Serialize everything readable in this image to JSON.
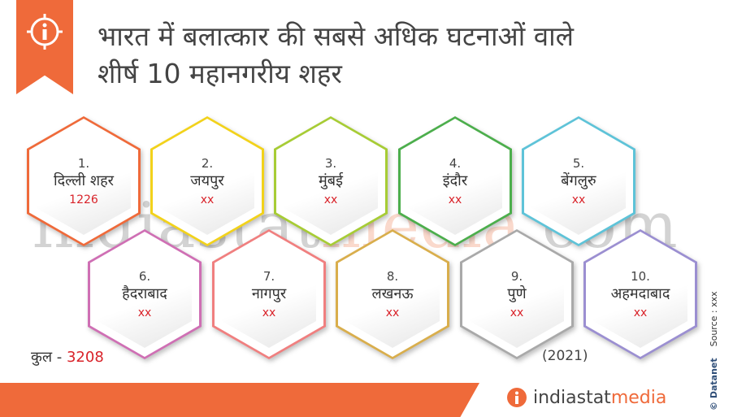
{
  "header": {
    "title_line1": "भारत में बलात्कार की सबसे अधिक घटनाओं वाले",
    "title_line2": "शीर्ष 10 महानगरीय शहर",
    "accent_color": "#ef6a3a"
  },
  "watermark": {
    "part1": "indiastat",
    "part2": "media",
    "part3": ".com"
  },
  "cities": [
    {
      "rank": "1.",
      "name": "दिल्ली शहर",
      "value": "1226",
      "color": "#ef6a3a"
    },
    {
      "rank": "2.",
      "name": "जयपुर",
      "value": "xx",
      "color": "#f2d21b"
    },
    {
      "rank": "3.",
      "name": "मुंबई",
      "value": "xx",
      "color": "#a7cc35"
    },
    {
      "rank": "4.",
      "name": "इंदौर",
      "value": "xx",
      "color": "#4cae4c"
    },
    {
      "rank": "5.",
      "name": "बेंगलुरु",
      "value": "xx",
      "color": "#5ec3d8"
    },
    {
      "rank": "6.",
      "name": "हैदराबाद",
      "value": "xx",
      "color": "#cf6fb4"
    },
    {
      "rank": "7.",
      "name": "नागपुर",
      "value": "xx",
      "color": "#f07f7f"
    },
    {
      "rank": "8.",
      "name": "लखनऊ",
      "value": "xx",
      "color": "#d9ae4c"
    },
    {
      "rank": "9.",
      "name": "पुणे",
      "value": "xx",
      "color": "#a9a9a9"
    },
    {
      "rank": "10.",
      "name": "अहमदाबाद",
      "value": "xx",
      "color": "#9b8fd1"
    }
  ],
  "total": {
    "label": "कुल - ",
    "value": "3208"
  },
  "year": "(2021)",
  "source": {
    "brand": "© Datanet",
    "text": "Source : xxx"
  },
  "logo": {
    "part1": "indiastat",
    "part2": "media",
    "icon": "info-icon"
  }
}
